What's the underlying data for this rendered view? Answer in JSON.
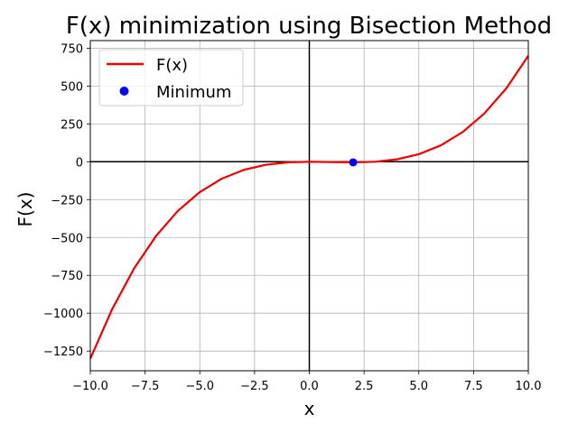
{
  "chart_data": {
    "type": "line",
    "title": "F(x) minimization using Bisection Method",
    "xlabel": "x",
    "ylabel": "F(x)",
    "xlim": [
      -10,
      10
    ],
    "ylim": [
      -1380,
      800
    ],
    "xticks": [
      -10.0,
      -7.5,
      -5.0,
      -2.5,
      0.0,
      2.5,
      5.0,
      7.5,
      10.0
    ],
    "xtick_labels": [
      "−10.0",
      "−7.5",
      "−5.0",
      "−2.5",
      "0.0",
      "2.5",
      "5.0",
      "7.5",
      "10.0"
    ],
    "yticks": [
      750,
      500,
      250,
      0,
      -250,
      -500,
      -750,
      -1000,
      -1250
    ],
    "ytick_labels": [
      "750",
      "500",
      "250",
      "0",
      "−250",
      "−500",
      "−750",
      "−1000",
      "−1250"
    ],
    "grid": true,
    "legend_position": "upper-left",
    "series": [
      {
        "name": "F(x)",
        "color": "#ee0000",
        "x": [
          -10,
          -9,
          -8,
          -7,
          -6,
          -5,
          -4,
          -3,
          -2,
          -1,
          0,
          1,
          2,
          3,
          4,
          5,
          6,
          7,
          8,
          9,
          10
        ],
        "y": [
          -1300,
          -972,
          -704,
          -490,
          -324,
          -200,
          -112,
          -54,
          -20,
          -4,
          0,
          -2,
          -4,
          0,
          16,
          50,
          108,
          196,
          320,
          486,
          700
        ]
      }
    ],
    "points": [
      {
        "name": "Minimum",
        "color": "#0000ff",
        "x": 2.0,
        "y": -4.0
      }
    ]
  }
}
